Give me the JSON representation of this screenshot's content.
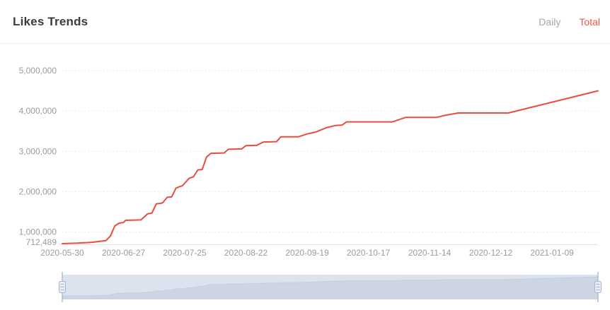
{
  "header": {
    "title": "Likes Trends",
    "tabs": [
      {
        "label": "Daily",
        "active": false
      },
      {
        "label": "Total",
        "active": true
      }
    ]
  },
  "chart_data": {
    "type": "line",
    "title": "Likes Trends",
    "series_name": "Total",
    "x_unit": "days since 2020-05-30, weekly cumulative likes",
    "x_max_day": 245,
    "x_tick_days": [
      0,
      28,
      56,
      84,
      112,
      140,
      168,
      196,
      224
    ],
    "x_tick_labels": [
      "2020-05-30",
      "2020-06-27",
      "2020-07-25",
      "2020-08-22",
      "2020-09-19",
      "2020-10-17",
      "2020-11-14",
      "2020-12-12",
      "2021-01-09"
    ],
    "y_min": 712489,
    "y_min_label": "712,489",
    "y_max": 5000000,
    "y_ticks": [
      1000000,
      2000000,
      3000000,
      4000000,
      5000000
    ],
    "y_tick_labels": [
      "1,000,000",
      "2,000,000",
      "3,000,000",
      "4,000,000",
      "5,000,000"
    ],
    "grid": "dotted-horizontal",
    "legend_position": "none",
    "points": [
      [
        0,
        712489
      ],
      [
        7,
        724000
      ],
      [
        14,
        748000
      ],
      [
        20,
        790000
      ],
      [
        22,
        900000
      ],
      [
        24,
        1150000
      ],
      [
        26,
        1220000
      ],
      [
        28,
        1235000
      ],
      [
        29,
        1290000
      ],
      [
        36,
        1300000
      ],
      [
        39,
        1450000
      ],
      [
        41,
        1470000
      ],
      [
        43,
        1700000
      ],
      [
        45,
        1710000
      ],
      [
        46,
        1730000
      ],
      [
        48,
        1860000
      ],
      [
        50,
        1870000
      ],
      [
        52,
        2090000
      ],
      [
        53,
        2110000
      ],
      [
        55,
        2150000
      ],
      [
        56,
        2210000
      ],
      [
        58,
        2330000
      ],
      [
        60,
        2370000
      ],
      [
        62,
        2540000
      ],
      [
        64,
        2550000
      ],
      [
        66,
        2860000
      ],
      [
        68,
        2950000
      ],
      [
        74,
        2960000
      ],
      [
        76,
        3050000
      ],
      [
        82,
        3060000
      ],
      [
        84,
        3140000
      ],
      [
        89,
        3150000
      ],
      [
        92,
        3230000
      ],
      [
        98,
        3240000
      ],
      [
        100,
        3360000
      ],
      [
        108,
        3360000
      ],
      [
        112,
        3430000
      ],
      [
        116,
        3480000
      ],
      [
        121,
        3590000
      ],
      [
        125,
        3640000
      ],
      [
        128,
        3650000
      ],
      [
        130,
        3730000
      ],
      [
        151,
        3730000
      ],
      [
        157,
        3840000
      ],
      [
        171,
        3840000
      ],
      [
        175,
        3890000
      ],
      [
        181,
        3950000
      ],
      [
        204,
        3950000
      ],
      [
        245,
        4500000
      ]
    ]
  },
  "slider": {
    "range": "full",
    "band_color": "#dce2ee",
    "shadow_area_color": "#cdd5e3",
    "shadow_line_color": "#c3cedf",
    "handle_stroke": "#a6b5cc",
    "handle_fill": "#e9edf4"
  },
  "colors": {
    "accent": "#f0594a",
    "line": "#e94d3c",
    "inactive_tab": "#a6a6a6",
    "title": "#383d42",
    "axis_text": "#9b9b9b",
    "grid_line": "#e6e6e6",
    "axis_line": "#e3e3e3"
  }
}
